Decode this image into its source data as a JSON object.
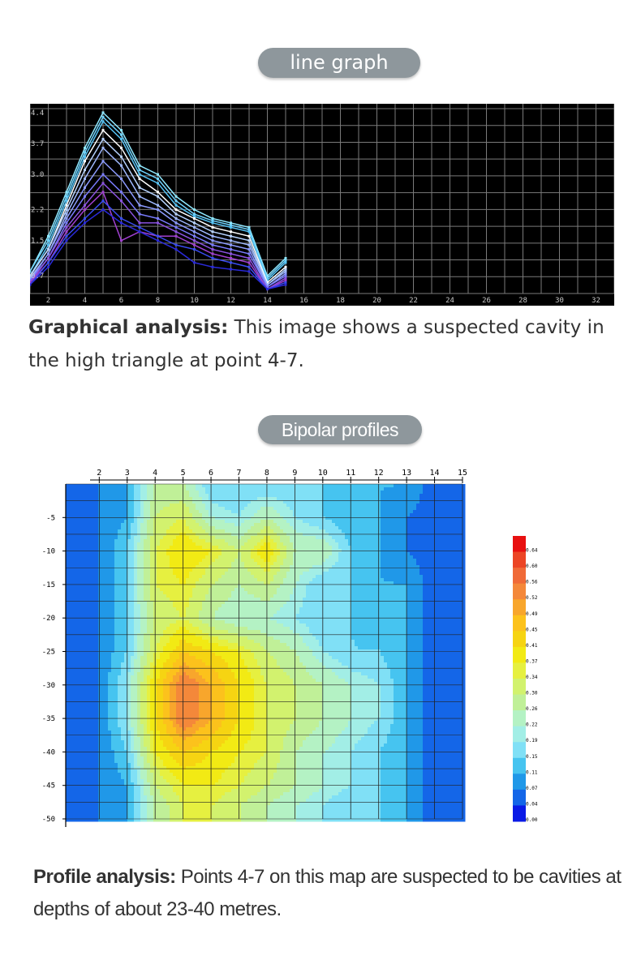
{
  "section1": {
    "pill_label": "line graph"
  },
  "caption1": {
    "bold": "Graphical analysis:",
    "text": " This image shows a suspected cavity in the high triangle at point 4-7."
  },
  "section2": {
    "pill_label": "Bipolar profiles"
  },
  "caption2": {
    "bold": "Profile analysis:",
    "text": " Points 4-7 on this map are suspected to be cavities at depths of about 23-40 metres."
  },
  "colors": {
    "pill": "#8e979c",
    "line_bg": "#000000",
    "grid": "#7a7a7a"
  },
  "chart_data": [
    {
      "type": "line",
      "title": "",
      "xlim": [
        1,
        33
      ],
      "ylim": [
        0.3,
        4.6
      ],
      "x_ticks": [
        "2",
        "4",
        "6",
        "8",
        "10",
        "12",
        "14",
        "16",
        "18",
        "20",
        "22",
        "24",
        "26",
        "28",
        "30",
        "32"
      ],
      "y_ticks": [
        "4.4",
        "3.7",
        "3.0",
        "2.2",
        "1.5",
        "0.7"
      ],
      "x": [
        1,
        2,
        3,
        4,
        5,
        6,
        7,
        8,
        9,
        10,
        11,
        12,
        13,
        14,
        15
      ],
      "series": [
        {
          "color": "#8fe8ff",
          "values": [
            0.8,
            1.6,
            2.6,
            3.6,
            4.4,
            4.0,
            3.2,
            3.0,
            2.5,
            2.2,
            2.0,
            1.9,
            1.8,
            0.7,
            1.1
          ]
        },
        {
          "color": "#6fd4ff",
          "values": [
            0.8,
            1.5,
            2.5,
            3.5,
            4.3,
            3.9,
            3.1,
            2.9,
            2.4,
            2.1,
            1.95,
            1.85,
            1.75,
            0.65,
            1.05
          ]
        },
        {
          "color": "#55c2f4",
          "values": [
            0.7,
            1.4,
            2.4,
            3.4,
            4.2,
            3.8,
            3.0,
            2.8,
            2.3,
            2.05,
            1.9,
            1.8,
            1.7,
            0.6,
            1.0
          ]
        },
        {
          "color": "#ffffff",
          "values": [
            0.7,
            1.3,
            2.3,
            3.3,
            4.0,
            3.6,
            2.9,
            2.6,
            2.2,
            2.0,
            1.8,
            1.7,
            1.6,
            0.55,
            0.9
          ]
        },
        {
          "color": "#b7d3ff",
          "values": [
            0.7,
            1.3,
            2.2,
            3.1,
            3.8,
            3.4,
            2.7,
            2.5,
            2.1,
            1.9,
            1.7,
            1.6,
            1.5,
            0.5,
            0.85
          ]
        },
        {
          "color": "#9fb8ff",
          "values": [
            0.65,
            1.2,
            2.1,
            2.9,
            3.6,
            3.2,
            2.5,
            2.3,
            2.0,
            1.8,
            1.6,
            1.5,
            1.4,
            0.5,
            0.8
          ]
        },
        {
          "color": "#8c9bff",
          "values": [
            0.6,
            1.2,
            2.0,
            2.7,
            3.3,
            2.9,
            2.3,
            2.2,
            1.9,
            1.7,
            1.5,
            1.4,
            1.3,
            0.45,
            0.75
          ]
        },
        {
          "color": "#7a7cff",
          "values": [
            0.6,
            1.1,
            1.9,
            2.5,
            3.0,
            2.6,
            2.1,
            2.0,
            1.8,
            1.6,
            1.4,
            1.3,
            1.2,
            0.45,
            0.7
          ]
        },
        {
          "color": "#8a52e0",
          "values": [
            0.55,
            1.1,
            1.8,
            2.3,
            2.8,
            2.4,
            1.9,
            1.9,
            1.7,
            1.5,
            1.3,
            1.2,
            1.1,
            0.4,
            0.65
          ]
        },
        {
          "color": "#a040d0",
          "values": [
            0.55,
            1.0,
            1.7,
            2.2,
            2.6,
            1.5,
            1.7,
            1.6,
            1.6,
            1.4,
            1.2,
            1.1,
            1.0,
            0.4,
            0.6
          ]
        },
        {
          "color": "#3a4cf0",
          "values": [
            0.5,
            1.0,
            1.6,
            2.0,
            2.4,
            2.0,
            1.8,
            1.6,
            1.4,
            1.3,
            1.1,
            1.0,
            0.9,
            0.4,
            0.55
          ]
        },
        {
          "color": "#2a2ad8",
          "values": [
            0.5,
            0.9,
            1.5,
            1.9,
            2.2,
            1.9,
            1.7,
            1.5,
            1.3,
            1.0,
            0.9,
            0.85,
            0.8,
            0.4,
            0.5
          ]
        }
      ]
    },
    {
      "type": "heatmap",
      "title": "",
      "x_ticks": [
        "2",
        "3",
        "4",
        "5",
        "6",
        "7",
        "8",
        "9",
        "10",
        "11",
        "12",
        "13",
        "14",
        "15"
      ],
      "y_ticks": [
        "-5",
        "-10",
        "-15",
        "-20",
        "-25",
        "-30",
        "-35",
        "-40",
        "-45",
        "-50"
      ],
      "xlim": [
        0.8,
        15
      ],
      "ylim": [
        -50,
        0
      ],
      "z_columns": [
        "1",
        "2",
        "3",
        "4",
        "5",
        "6",
        "7",
        "8",
        "9",
        "10",
        "11",
        "12",
        "13",
        "14",
        "15"
      ],
      "z_rows_depth": [
        "0",
        "-5",
        "-10",
        "-15",
        "-20",
        "-25",
        "-30",
        "-35",
        "-40",
        "-45",
        "-48"
      ],
      "z": [
        [
          0.04,
          0.07,
          0.11,
          0.26,
          0.26,
          0.15,
          0.15,
          0.15,
          0.15,
          0.15,
          0.11,
          0.11,
          0.11,
          0.04,
          0.04
        ],
        [
          0.04,
          0.07,
          0.11,
          0.3,
          0.34,
          0.22,
          0.19,
          0.26,
          0.19,
          0.15,
          0.11,
          0.11,
          0.07,
          0.04,
          0.04
        ],
        [
          0.04,
          0.07,
          0.15,
          0.34,
          0.41,
          0.37,
          0.3,
          0.41,
          0.26,
          0.26,
          0.15,
          0.11,
          0.07,
          0.04,
          0.04
        ],
        [
          0.04,
          0.07,
          0.15,
          0.34,
          0.37,
          0.3,
          0.26,
          0.3,
          0.22,
          0.15,
          0.15,
          0.11,
          0.11,
          0.04,
          0.04
        ],
        [
          0.04,
          0.07,
          0.15,
          0.3,
          0.34,
          0.26,
          0.22,
          0.22,
          0.19,
          0.15,
          0.15,
          0.11,
          0.11,
          0.04,
          0.04
        ],
        [
          0.04,
          0.07,
          0.15,
          0.34,
          0.45,
          0.41,
          0.37,
          0.3,
          0.26,
          0.19,
          0.15,
          0.15,
          0.11,
          0.04,
          0.04
        ],
        [
          0.04,
          0.07,
          0.19,
          0.41,
          0.56,
          0.49,
          0.41,
          0.34,
          0.3,
          0.26,
          0.22,
          0.19,
          0.11,
          0.04,
          0.04
        ],
        [
          0.04,
          0.07,
          0.19,
          0.41,
          0.56,
          0.49,
          0.41,
          0.34,
          0.3,
          0.26,
          0.22,
          0.19,
          0.11,
          0.04,
          0.04
        ],
        [
          0.04,
          0.07,
          0.15,
          0.37,
          0.45,
          0.41,
          0.37,
          0.34,
          0.26,
          0.22,
          0.19,
          0.15,
          0.11,
          0.04,
          0.04
        ],
        [
          0.04,
          0.07,
          0.11,
          0.3,
          0.37,
          0.37,
          0.34,
          0.3,
          0.26,
          0.22,
          0.19,
          0.15,
          0.11,
          0.04,
          0.04
        ],
        [
          0.04,
          0.07,
          0.11,
          0.26,
          0.34,
          0.34,
          0.3,
          0.26,
          0.22,
          0.19,
          0.15,
          0.15,
          0.11,
          0.04,
          0.04
        ]
      ],
      "legend_values": [
        "0.64",
        "0.60",
        "0.56",
        "0.52",
        "0.49",
        "0.45",
        "0.41",
        "0.37",
        "0.34",
        "0.30",
        "0.26",
        "0.22",
        "0.19",
        "0.15",
        "0.11",
        "0.07",
        "0.04",
        "0.00"
      ],
      "legend_colors": [
        "#e81010",
        "#ec4525",
        "#f06a38",
        "#f4883a",
        "#f8a62c",
        "#fcc21c",
        "#f6d412",
        "#f2ea14",
        "#e6f040",
        "#d2f26e",
        "#c0f098",
        "#b4f2c4",
        "#a2eee6",
        "#80e0f6",
        "#46c4f0",
        "#2098e8",
        "#1466e8",
        "#0a1ae6"
      ],
      "grid": true,
      "legend_position": "right"
    }
  ]
}
